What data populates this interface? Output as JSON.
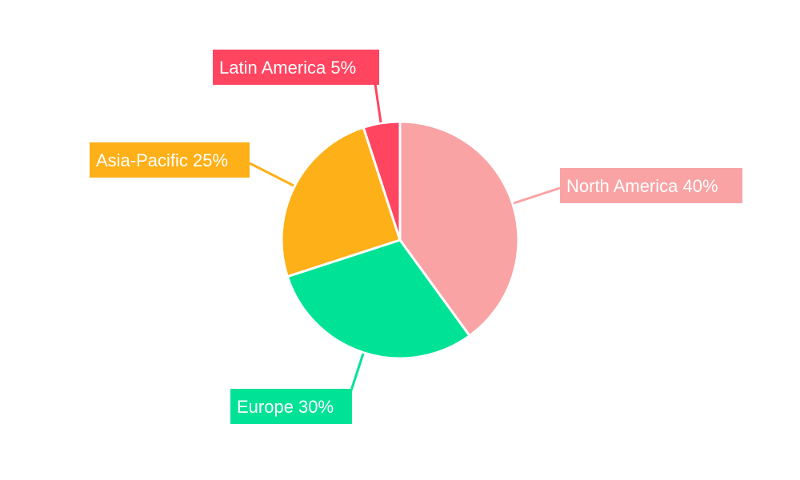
{
  "chart_data": {
    "type": "pie",
    "title": "",
    "start_angle_deg": 0,
    "direction": "clockwise",
    "legend": "none",
    "slices": [
      {
        "label": "North America",
        "value": 40,
        "data_label": "North America 40%",
        "color": "#F9A3A4"
      },
      {
        "label": "Europe",
        "value": 30,
        "data_label": "Europe 30%",
        "color": "#00E396"
      },
      {
        "label": "Asia-Pacific",
        "value": 25,
        "data_label": "Asia-Pacific 25%",
        "color": "#FEB019"
      },
      {
        "label": "Latin America",
        "value": 5,
        "data_label": "Latin America 5%",
        "color": "#FF4560"
      }
    ]
  }
}
